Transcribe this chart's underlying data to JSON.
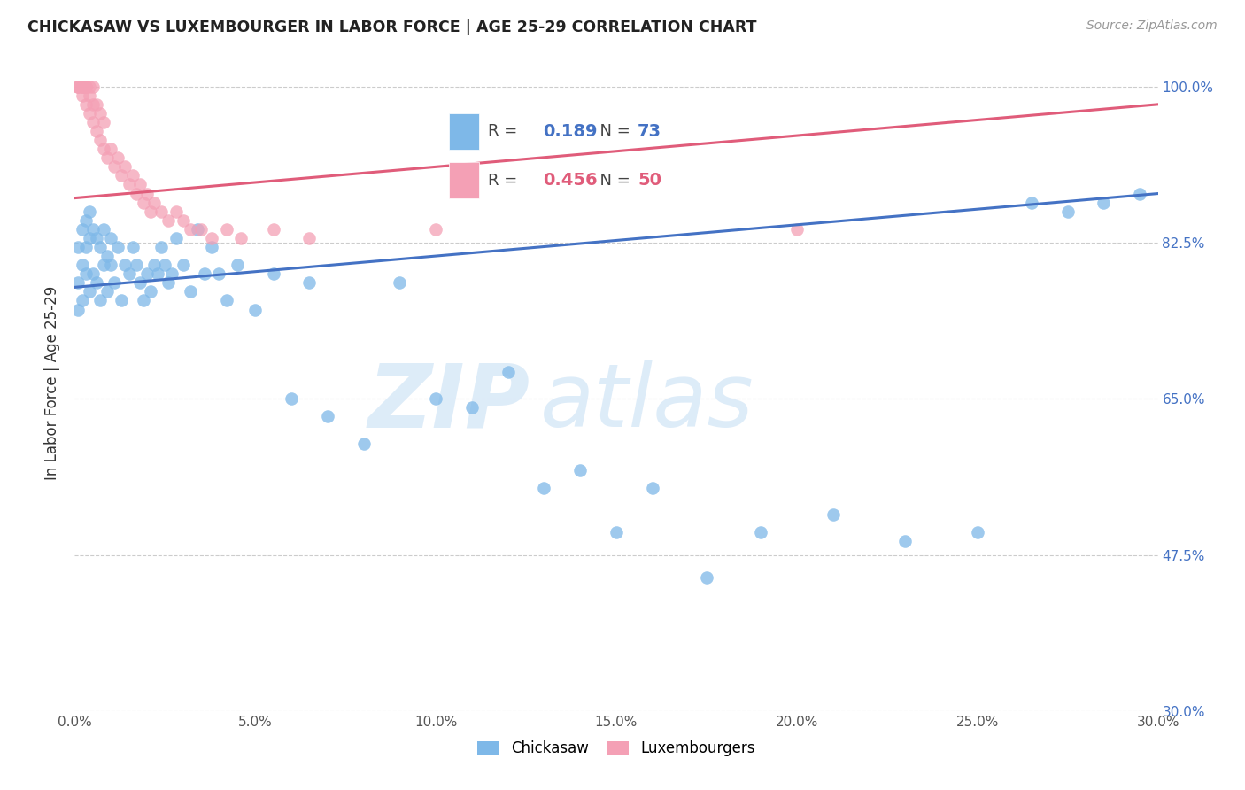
{
  "title": "CHICKASAW VS LUXEMBOURGER IN LABOR FORCE | AGE 25-29 CORRELATION CHART",
  "source": "Source: ZipAtlas.com",
  "ylabel": "In Labor Force | Age 25-29",
  "x_min": 0.0,
  "x_max": 0.3,
  "y_min": 0.3,
  "y_max": 1.035,
  "x_ticks": [
    0.0,
    0.05,
    0.1,
    0.15,
    0.2,
    0.25,
    0.3
  ],
  "x_tick_labels": [
    "0.0%",
    "5.0%",
    "10.0%",
    "15.0%",
    "20.0%",
    "25.0%",
    "30.0%"
  ],
  "y_ticks": [
    0.3,
    0.475,
    0.65,
    0.825,
    1.0
  ],
  "y_tick_labels": [
    "30.0%",
    "47.5%",
    "65.0%",
    "82.5%",
    "100.0%"
  ],
  "chickasaw_color": "#7eb8e8",
  "luxembourger_color": "#f4a0b5",
  "chickasaw_line_color": "#4472c4",
  "luxembourger_line_color": "#e05c7a",
  "R_chickasaw": 0.189,
  "N_chickasaw": 73,
  "R_luxembourger": 0.456,
  "N_luxembourger": 50,
  "legend_R_color_chickasaw": "#4472c4",
  "legend_R_color_luxembourger": "#e05c7a",
  "watermark_zip": "ZIP",
  "watermark_atlas": "atlas",
  "background_color": "#ffffff",
  "grid_color": "#cccccc",
  "chickasaw_x": [
    0.001,
    0.001,
    0.001,
    0.002,
    0.002,
    0.002,
    0.003,
    0.003,
    0.003,
    0.004,
    0.004,
    0.004,
    0.005,
    0.005,
    0.006,
    0.006,
    0.007,
    0.007,
    0.008,
    0.008,
    0.009,
    0.009,
    0.01,
    0.01,
    0.011,
    0.012,
    0.013,
    0.014,
    0.015,
    0.016,
    0.017,
    0.018,
    0.019,
    0.02,
    0.021,
    0.022,
    0.023,
    0.024,
    0.025,
    0.026,
    0.027,
    0.028,
    0.03,
    0.032,
    0.034,
    0.036,
    0.038,
    0.04,
    0.042,
    0.045,
    0.05,
    0.055,
    0.06,
    0.065,
    0.07,
    0.08,
    0.09,
    0.1,
    0.11,
    0.12,
    0.13,
    0.14,
    0.15,
    0.16,
    0.175,
    0.19,
    0.21,
    0.23,
    0.25,
    0.265,
    0.275,
    0.285,
    0.295
  ],
  "chickasaw_y": [
    0.82,
    0.78,
    0.75,
    0.84,
    0.8,
    0.76,
    0.85,
    0.82,
    0.79,
    0.86,
    0.83,
    0.77,
    0.84,
    0.79,
    0.83,
    0.78,
    0.82,
    0.76,
    0.84,
    0.8,
    0.81,
    0.77,
    0.83,
    0.8,
    0.78,
    0.82,
    0.76,
    0.8,
    0.79,
    0.82,
    0.8,
    0.78,
    0.76,
    0.79,
    0.77,
    0.8,
    0.79,
    0.82,
    0.8,
    0.78,
    0.79,
    0.83,
    0.8,
    0.77,
    0.84,
    0.79,
    0.82,
    0.79,
    0.76,
    0.8,
    0.75,
    0.79,
    0.65,
    0.78,
    0.63,
    0.6,
    0.78,
    0.65,
    0.64,
    0.68,
    0.55,
    0.57,
    0.5,
    0.55,
    0.45,
    0.5,
    0.52,
    0.49,
    0.5,
    0.87,
    0.86,
    0.87,
    0.88
  ],
  "luxembourger_x": [
    0.001,
    0.001,
    0.001,
    0.002,
    0.002,
    0.002,
    0.002,
    0.003,
    0.003,
    0.003,
    0.003,
    0.004,
    0.004,
    0.004,
    0.005,
    0.005,
    0.005,
    0.006,
    0.006,
    0.007,
    0.007,
    0.008,
    0.008,
    0.009,
    0.01,
    0.011,
    0.012,
    0.013,
    0.014,
    0.015,
    0.016,
    0.017,
    0.018,
    0.019,
    0.02,
    0.021,
    0.022,
    0.024,
    0.026,
    0.028,
    0.03,
    0.032,
    0.035,
    0.038,
    0.042,
    0.046,
    0.055,
    0.065,
    0.1,
    0.2
  ],
  "luxembourger_y": [
    1.0,
    1.0,
    1.0,
    1.0,
    1.0,
    1.0,
    0.99,
    1.0,
    1.0,
    1.0,
    0.98,
    1.0,
    0.99,
    0.97,
    1.0,
    0.98,
    0.96,
    0.98,
    0.95,
    0.97,
    0.94,
    0.96,
    0.93,
    0.92,
    0.93,
    0.91,
    0.92,
    0.9,
    0.91,
    0.89,
    0.9,
    0.88,
    0.89,
    0.87,
    0.88,
    0.86,
    0.87,
    0.86,
    0.85,
    0.86,
    0.85,
    0.84,
    0.84,
    0.83,
    0.84,
    0.83,
    0.84,
    0.83,
    0.84,
    0.84
  ],
  "blue_trend_x0": 0.0,
  "blue_trend_y0": 0.775,
  "blue_trend_x1": 0.3,
  "blue_trend_y1": 0.88,
  "pink_trend_x0": 0.0,
  "pink_trend_y0": 0.875,
  "pink_trend_x1": 0.3,
  "pink_trend_y1": 0.98
}
